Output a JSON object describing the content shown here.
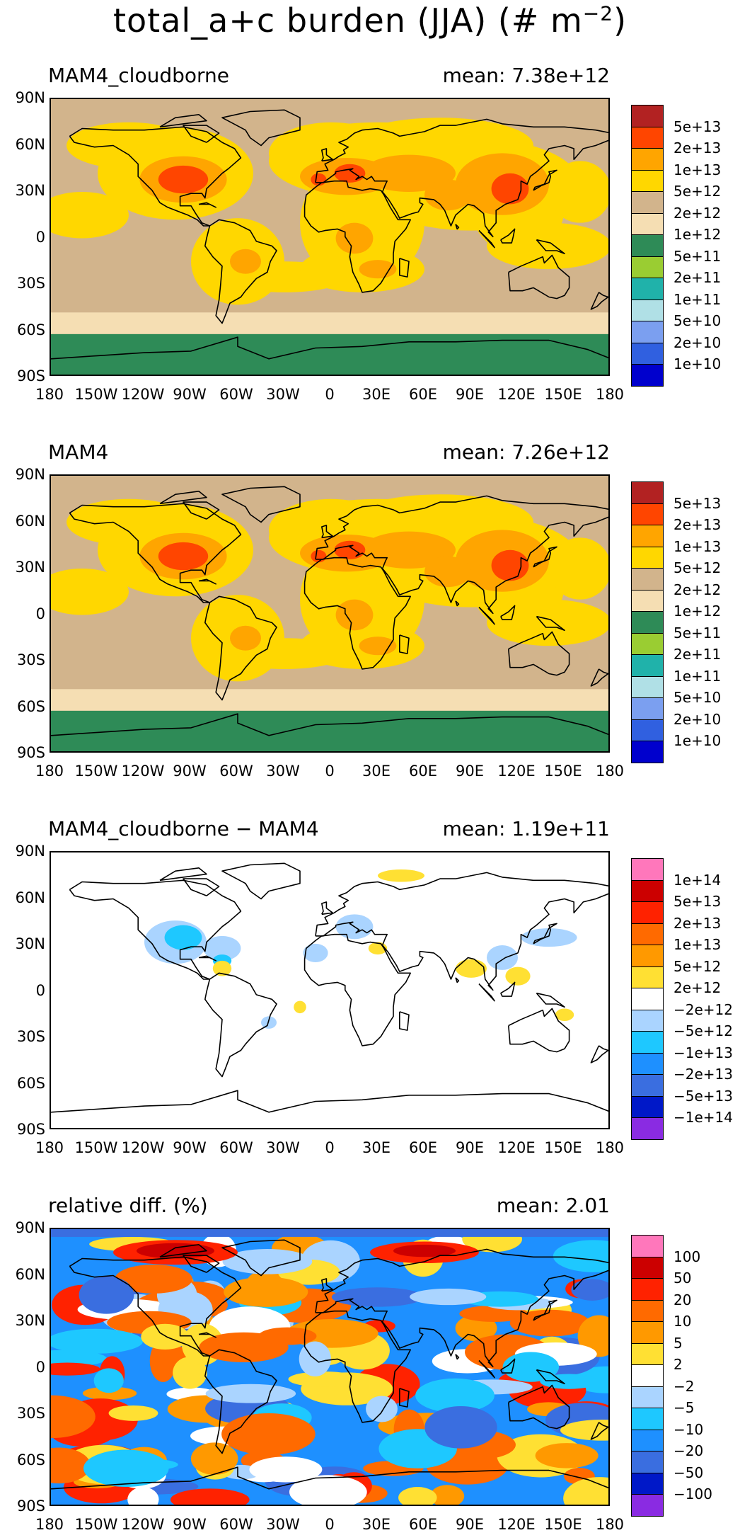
{
  "figure": {
    "title_main": "total_a+c burden (JJA) (# m",
    "title_exp": "−2",
    "title_close": ")"
  },
  "axes": {
    "lat_labels": [
      "90N",
      "60N",
      "30N",
      "0",
      "30S",
      "60S",
      "90S"
    ],
    "lon_labels": [
      "180",
      "150W",
      "120W",
      "90W",
      "60W",
      "30W",
      "0",
      "30E",
      "60E",
      "90E",
      "120E",
      "150E",
      "180"
    ]
  },
  "panels": [
    {
      "title": "MAM4_cloudborne",
      "mean": "mean: 7.38e+12",
      "legend": {
        "labels": [
          "5e+13",
          "2e+13",
          "1e+13",
          "5e+12",
          "2e+12",
          "1e+12",
          "5e+11",
          "2e+11",
          "1e+11",
          "5e+10",
          "2e+10",
          "1e+10"
        ],
        "colors": [
          "#b22222",
          "#ff4500",
          "#ffa500",
          "#ffd700",
          "#d2b48c",
          "#f5deb3",
          "#2e8b57",
          "#9acd32",
          "#20b2aa",
          "#b0e0e6",
          "#7b9ff0",
          "#3060e0",
          "#0000cd"
        ]
      }
    },
    {
      "title": "MAM4",
      "mean": "mean: 7.26e+12",
      "legend": {
        "labels": [
          "5e+13",
          "2e+13",
          "1e+13",
          "5e+12",
          "2e+12",
          "1e+12",
          "5e+11",
          "2e+11",
          "1e+11",
          "5e+10",
          "2e+10",
          "1e+10"
        ],
        "colors": [
          "#b22222",
          "#ff4500",
          "#ffa500",
          "#ffd700",
          "#d2b48c",
          "#f5deb3",
          "#2e8b57",
          "#9acd32",
          "#20b2aa",
          "#b0e0e6",
          "#7b9ff0",
          "#3060e0",
          "#0000cd"
        ]
      }
    },
    {
      "title": "MAM4_cloudborne − MAM4",
      "mean": "mean: 1.19e+11",
      "legend": {
        "labels": [
          "1e+14",
          "5e+13",
          "2e+13",
          "1e+13",
          "5e+12",
          "2e+12",
          "−2e+12",
          "−5e+12",
          "−1e+13",
          "−2e+13",
          "−5e+13",
          "−1e+14"
        ],
        "colors": [
          "#ff77bb",
          "#cc0000",
          "#ff2200",
          "#ff6a00",
          "#ff9900",
          "#ffe033",
          "#ffffff",
          "#aad4ff",
          "#1ec8ff",
          "#1e90ff",
          "#3a6ee0",
          "#0018c8",
          "#8a2be2"
        ]
      }
    },
    {
      "title": "relative diff. (%)",
      "mean": "mean:   2.01",
      "legend": {
        "labels": [
          "100",
          "50",
          "20",
          "10",
          "5",
          "2",
          "−2",
          "−5",
          "−10",
          "−20",
          "−50",
          "−100"
        ],
        "colors": [
          "#ff77bb",
          "#cc0000",
          "#ff2200",
          "#ff6a00",
          "#ff9900",
          "#ffe033",
          "#ffffff",
          "#aad4ff",
          "#1ec8ff",
          "#1e90ff",
          "#3a6ee0",
          "#0018c8",
          "#8a2be2"
        ]
      }
    }
  ]
}
